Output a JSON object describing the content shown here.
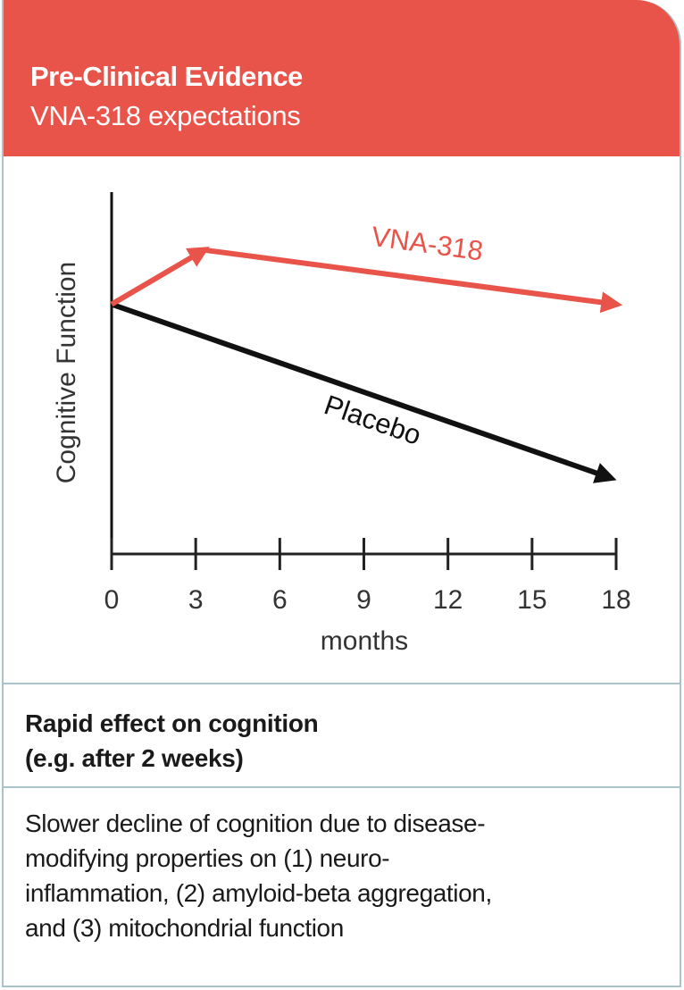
{
  "header": {
    "title": "Pre-Clinical Evidence",
    "subtitle": "VNA-318 expectations"
  },
  "colors": {
    "header_bg": "#e8534a",
    "vna_series": "#e8534a",
    "placebo_series": "#111111",
    "border": "#a9c3c8"
  },
  "chart_data": {
    "type": "line",
    "title": "",
    "xlabel": "months",
    "ylabel": "Cognitive Function",
    "xlim": [
      0,
      18
    ],
    "ylim": [
      0,
      100
    ],
    "x_ticks": [
      0,
      3,
      6,
      9,
      12,
      15,
      18
    ],
    "x_tick_labels": [
      "0",
      "3",
      "6",
      "9",
      "12",
      "15",
      "18"
    ],
    "y_ticks": [],
    "grid": false,
    "legend": "none (inline labels)",
    "series": [
      {
        "name": "VNA-318",
        "label": "VNA-318",
        "points": [
          [
            0,
            69
          ],
          [
            3.3,
            84
          ],
          [
            18,
            69
          ]
        ]
      },
      {
        "name": "Placebo",
        "label": "Placebo",
        "points": [
          [
            0,
            69
          ],
          [
            17.8,
            21
          ]
        ]
      }
    ]
  },
  "sections": {
    "rapid_effect": {
      "line1": "Rapid effect on cognition",
      "line2": "(e.g. after 2 weeks)"
    },
    "slower_decline": {
      "lines": [
        "Slower decline of cognition due to disease-",
        "modifying properties on (1) neuro-",
        "inflammation, (2) amyloid-beta aggregation,",
        "and (3) mitochondrial function"
      ]
    }
  }
}
